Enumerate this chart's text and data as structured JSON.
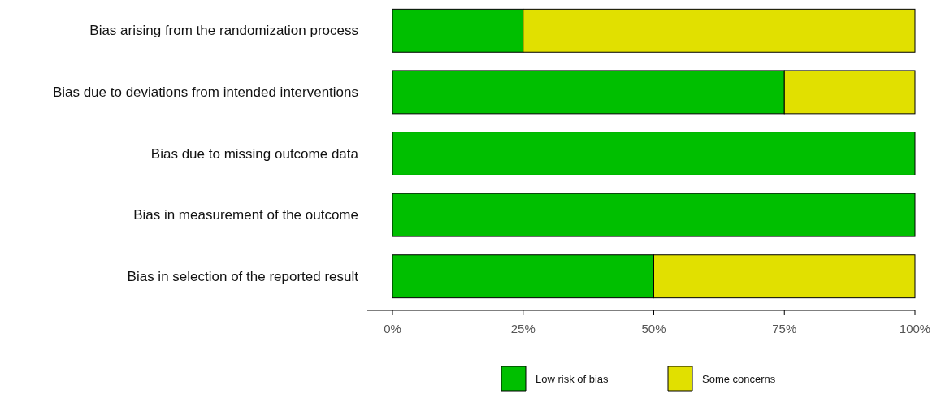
{
  "chart_data": {
    "type": "bar",
    "orientation": "horizontal",
    "stacked": true,
    "categories": [
      "Bias arising from the randomization process",
      "Bias due to deviations from intended interventions",
      "Bias due to missing outcome data",
      "Bias in measurement of the outcome",
      "Bias in selection of the reported result"
    ],
    "series": [
      {
        "name": "Low risk of bias",
        "color": "#00bf00",
        "values": [
          25,
          75,
          100,
          100,
          50
        ]
      },
      {
        "name": "Some concerns",
        "color": "#e1e000",
        "values": [
          75,
          25,
          0,
          0,
          50
        ]
      }
    ],
    "xlim": [
      0,
      100
    ],
    "xticks": [
      {
        "value": 0,
        "label": "0%"
      },
      {
        "value": 25,
        "label": "25%"
      },
      {
        "value": 50,
        "label": "50%"
      },
      {
        "value": 75,
        "label": "75%"
      },
      {
        "value": 100,
        "label": "100%"
      }
    ],
    "grid": false,
    "legend": "bottom"
  }
}
